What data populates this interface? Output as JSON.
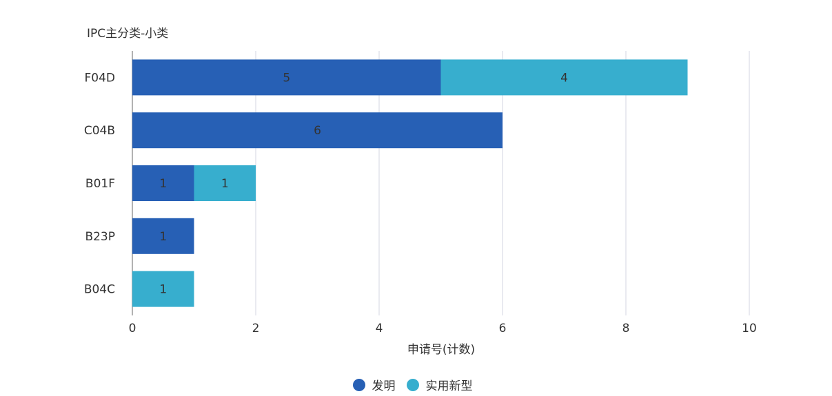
{
  "chart_data": {
    "type": "bar",
    "orientation": "horizontal",
    "stacked": true,
    "title": "",
    "ylabel": "IPC主分类-小类",
    "xlabel": "申请号(计数)",
    "categories": [
      "F04D",
      "C04B",
      "B01F",
      "B23P",
      "B04C"
    ],
    "series": [
      {
        "name": "发明",
        "color": "#2760B5",
        "values": [
          5,
          6,
          1,
          1,
          0
        ]
      },
      {
        "name": "实用新型",
        "color": "#37AECE",
        "values": [
          4,
          0,
          1,
          0,
          1
        ]
      }
    ],
    "xlim": [
      0,
      10
    ],
    "xticks": [
      0,
      2,
      4,
      6,
      8,
      10
    ],
    "grid": true,
    "legend_position": "bottom"
  }
}
